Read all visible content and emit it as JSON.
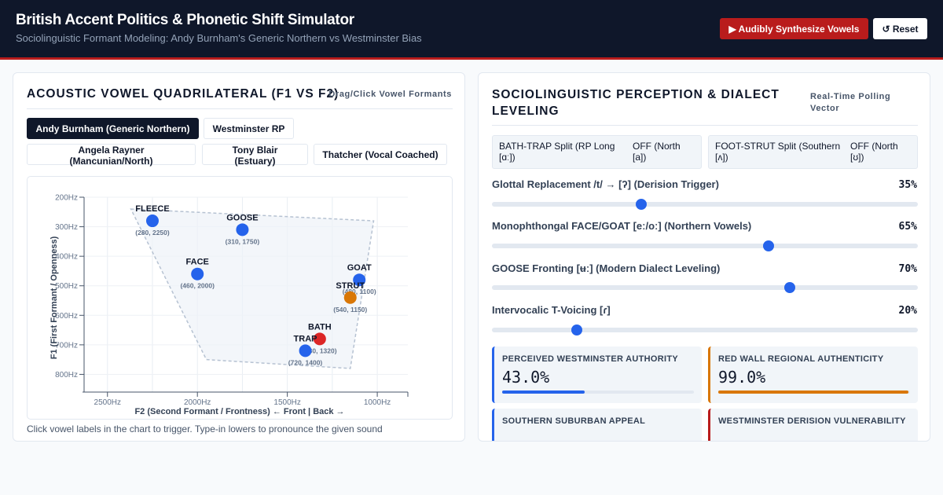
{
  "header": {
    "title": "British Accent Politics & Phonetic Shift Simulator",
    "subtitle": "Sociolinguistic Formant Modeling: Andy Burnham's Generic Northern vs Westminster Bias",
    "synth_button": "▶ Audibly Synthesize Vowels",
    "reset_button": "↺ Reset"
  },
  "left": {
    "title": "ACOUSTIC VOWEL QUADRILATERAL (F1 VS F2)",
    "hint": "Drag/Click Vowel Formants",
    "presets": [
      {
        "label": "Andy Burnham (Generic Northern)",
        "active": true
      },
      {
        "label": "Westminster RP",
        "active": false
      },
      {
        "label": "Angela Rayner (Mancunian/North)",
        "active": false
      },
      {
        "label": "Tony Blair (Estuary)",
        "active": false
      },
      {
        "label": "Thatcher (Vocal Coached)",
        "active": false
      }
    ],
    "footnote": "Click vowel labels in the chart to trigger. Type-in lowers to pronounce the given sound"
  },
  "chart_data": {
    "type": "scatter",
    "xlabel": "F2 (Second Formant / Frontness)",
    "xlabel_suffix": "← Front | Back →",
    "ylabel": "F1 (First Formant / Openness)",
    "x_ticks": [
      "2500Hz",
      "2000Hz",
      "1500Hz",
      "1000Hz"
    ],
    "x_tick_values": [
      2500,
      2000,
      1500,
      1000
    ],
    "y_ticks": [
      "200Hz",
      "300Hz",
      "400Hz",
      "500Hz",
      "600Hz",
      "700Hz",
      "800Hz"
    ],
    "y_tick_values": [
      200,
      300,
      400,
      500,
      600,
      700,
      800
    ],
    "xlim": [
      2630,
      830
    ],
    "ylim": [
      200,
      860
    ],
    "grid": true,
    "quadrilateral": [
      [
        2370,
        240
      ],
      [
        1020,
        280
      ],
      [
        1150,
        780
      ],
      [
        1950,
        750
      ]
    ],
    "points": [
      {
        "name": "FLEECE",
        "f1": 280,
        "f2": 2250,
        "label": "(280, 2250)",
        "color": "#2563eb"
      },
      {
        "name": "GOOSE",
        "f1": 310,
        "f2": 1750,
        "label": "(310, 1750)",
        "color": "#2563eb"
      },
      {
        "name": "FACE",
        "f1": 460,
        "f2": 2000,
        "label": "(460, 2000)",
        "color": "#2563eb"
      },
      {
        "name": "GOAT",
        "f1": 480,
        "f2": 1100,
        "label": "(480, 1100)",
        "color": "#2563eb"
      },
      {
        "name": "STRUT",
        "f1": 540,
        "f2": 1150,
        "label": "(540, 1150)",
        "color": "#d97706"
      },
      {
        "name": "BATH",
        "f1": 680,
        "f2": 1320,
        "label": "(680, 1320)",
        "color": "#dc2626"
      },
      {
        "name": "TRAP",
        "f1": 720,
        "f2": 1400,
        "label": "(720, 1400)",
        "color": "#2563eb"
      }
    ]
  },
  "right": {
    "title": "SOCIOLINGUISTIC PERCEPTION & DIALECT LEVELING",
    "hint": "Real-Time Polling Vector",
    "toggles": [
      {
        "label": "BATH-TRAP Split (RP Long [ɑː])",
        "value": "OFF (North [a])"
      },
      {
        "label": "FOOT-STRUT Split (Southern [ʌ])",
        "value": "OFF (North [ʊ])"
      }
    ],
    "sliders": [
      {
        "label": "Glottal Replacement /t/ → [ʔ] (Derision Trigger)",
        "value_text": "35%",
        "value": 35
      },
      {
        "label": "Monophthongal FACE/GOAT [eː/oː] (Northern Vowels)",
        "value_text": "65%",
        "value": 65
      },
      {
        "label": "GOOSE Fronting [ʉː] (Modern Dialect Leveling)",
        "value_text": "70%",
        "value": 70
      },
      {
        "label": "Intervocalic T-Voicing [ɾ]",
        "value_text": "20%",
        "value": 20
      }
    ],
    "metrics": [
      {
        "label": "PERCEIVED WESTMINSTER AUTHORITY",
        "value_text": "43.0%",
        "value": 43.0,
        "color": "#2563eb"
      },
      {
        "label": "RED WALL REGIONAL AUTHENTICITY",
        "value_text": "99.0%",
        "value": 99.0,
        "color": "#d97706"
      },
      {
        "label": "SOUTHERN SUBURBAN APPEAL",
        "value_text": "",
        "value": 0,
        "color": "#2563eb"
      },
      {
        "label": "WESTMINSTER DERISION VULNERABILITY",
        "value_text": "",
        "value": 0,
        "color": "#b91c1c"
      }
    ]
  }
}
